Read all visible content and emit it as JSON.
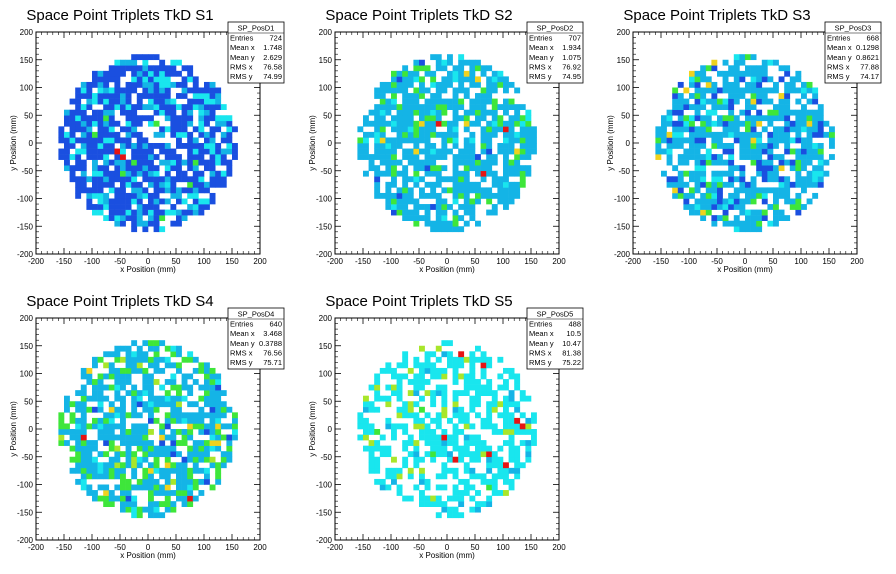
{
  "page": {
    "background": "#ffffff"
  },
  "palette": [
    "#1a4fe0",
    "#14b4e6",
    "#19e6ee",
    "#3ee63a",
    "#a8e62a",
    "#f0d21e",
    "#e61414"
  ],
  "chart_data": [
    {
      "type": "heatmap",
      "title": "Space Point Triplets TkD S1",
      "xlabel": "x Position (mm)",
      "ylabel": "y Position (mm)",
      "xlim": [
        -200,
        200
      ],
      "ylim": [
        -200,
        200
      ],
      "xticks": [
        -200,
        -150,
        -100,
        -50,
        0,
        50,
        100,
        150,
        200
      ],
      "yticks": [
        -200,
        -150,
        -100,
        -50,
        0,
        50,
        100,
        150,
        200
      ],
      "grid": false,
      "stats": {
        "name": "SP_PosD1",
        "rows": [
          [
            "Entries",
            "724"
          ],
          [
            "Mean x",
            "1.748"
          ],
          [
            "Mean y",
            "2.629"
          ],
          [
            "RMS x",
            "76.58"
          ],
          [
            "RMS y",
            "74.99"
          ]
        ]
      },
      "disk_radius": 160,
      "bin_size": 10,
      "fill_fraction": 0.78,
      "seed": 11,
      "level_weights": [
        0.66,
        0.15,
        0.15,
        0.02,
        0.0,
        0.0,
        0.02
      ],
      "hot_bins": [
        [
          -55,
          -15
        ],
        [
          -45,
          -25
        ]
      ]
    },
    {
      "type": "heatmap",
      "title": "Space Point Triplets TkD S2",
      "xlabel": "x Position (mm)",
      "ylabel": "y Position (mm)",
      "xlim": [
        -200,
        200
      ],
      "ylim": [
        -200,
        200
      ],
      "xticks": [
        -200,
        -150,
        -100,
        -50,
        0,
        50,
        100,
        150,
        200
      ],
      "yticks": [
        -200,
        -150,
        -100,
        -50,
        0,
        50,
        100,
        150,
        200
      ],
      "grid": false,
      "stats": {
        "name": "SP_PosD2",
        "rows": [
          [
            "Entries",
            "707"
          ],
          [
            "Mean x",
            "1.934"
          ],
          [
            "Mean y",
            "1.075"
          ],
          [
            "RMS x",
            "76.92"
          ],
          [
            "RMS y",
            "74.95"
          ]
        ]
      },
      "disk_radius": 160,
      "bin_size": 10,
      "fill_fraction": 0.76,
      "seed": 23,
      "level_weights": [
        0.02,
        0.8,
        0.05,
        0.1,
        0.0,
        0.01,
        0.02
      ],
      "hot_bins": [
        [
          -15,
          35
        ],
        [
          105,
          25
        ],
        [
          65,
          -55
        ]
      ]
    },
    {
      "type": "heatmap",
      "title": "Space Point Triplets TkD S3",
      "xlabel": "x Position (mm)",
      "ylabel": "y Position (mm)",
      "xlim": [
        -200,
        200
      ],
      "ylim": [
        -200,
        200
      ],
      "xticks": [
        -200,
        -150,
        -100,
        -50,
        0,
        50,
        100,
        150,
        200
      ],
      "yticks": [
        -200,
        -150,
        -100,
        -50,
        0,
        50,
        100,
        150,
        200
      ],
      "grid": false,
      "stats": {
        "name": "SP_PosD3",
        "rows": [
          [
            "Entries",
            "668"
          ],
          [
            "Mean x",
            "0.1298"
          ],
          [
            "Mean y",
            "0.8621"
          ],
          [
            "RMS x",
            "77.88"
          ],
          [
            "RMS y",
            "74.17"
          ]
        ]
      },
      "disk_radius": 160,
      "bin_size": 10,
      "fill_fraction": 0.72,
      "seed": 37,
      "level_weights": [
        0.16,
        0.68,
        0.08,
        0.06,
        0.0,
        0.02,
        0.0
      ],
      "hot_bins": []
    },
    {
      "type": "heatmap",
      "title": "Space Point Triplets TkD S4",
      "xlabel": "x Position (mm)",
      "ylabel": "y Position (mm)",
      "xlim": [
        -200,
        200
      ],
      "ylim": [
        -200,
        200
      ],
      "xticks": [
        -200,
        -150,
        -100,
        -50,
        0,
        50,
        100,
        150,
        200
      ],
      "yticks": [
        -200,
        -150,
        -100,
        -50,
        0,
        50,
        100,
        150,
        200
      ],
      "grid": false,
      "stats": {
        "name": "SP_PosD4",
        "rows": [
          [
            "Entries",
            "640"
          ],
          [
            "Mean x",
            "3.468"
          ],
          [
            "Mean y",
            "0.3788"
          ],
          [
            "RMS x",
            "76.56"
          ],
          [
            "RMS y",
            "75.71"
          ]
        ]
      },
      "disk_radius": 160,
      "bin_size": 10,
      "fill_fraction": 0.72,
      "seed": 53,
      "level_weights": [
        0.02,
        0.66,
        0.08,
        0.2,
        0.02,
        0.02,
        0.0
      ],
      "hot_bins": [
        [
          -115,
          -15
        ],
        [
          75,
          -125
        ]
      ]
    },
    {
      "type": "heatmap",
      "title": "Space Point Triplets TkD S5",
      "xlabel": "x Position (mm)",
      "ylabel": "y Position (mm)",
      "xlim": [
        -200,
        200
      ],
      "ylim": [
        -200,
        200
      ],
      "xticks": [
        -200,
        -150,
        -100,
        -50,
        0,
        50,
        100,
        150,
        200
      ],
      "yticks": [
        -200,
        -150,
        -100,
        -50,
        0,
        50,
        100,
        150,
        200
      ],
      "grid": false,
      "stats": {
        "name": "SP_PosD5",
        "rows": [
          [
            "Entries",
            "488"
          ],
          [
            "Mean x",
            "10.5"
          ],
          [
            "Mean y",
            "10.47"
          ],
          [
            "RMS x",
            "81.38"
          ],
          [
            "RMS y",
            "75.22"
          ]
        ]
      },
      "disk_radius": 160,
      "bin_size": 10,
      "fill_fraction": 0.55,
      "seed": 71,
      "level_weights": [
        0.0,
        0.06,
        0.8,
        0.02,
        0.12,
        0.0,
        0.0
      ],
      "hot_bins": [
        [
          25,
          135
        ],
        [
          65,
          115
        ],
        [
          145,
          65
        ],
        [
          -5,
          -15
        ],
        [
          15,
          -55
        ],
        [
          75,
          -45
        ],
        [
          125,
          15
        ],
        [
          105,
          -65
        ],
        [
          135,
          5
        ]
      ]
    }
  ]
}
